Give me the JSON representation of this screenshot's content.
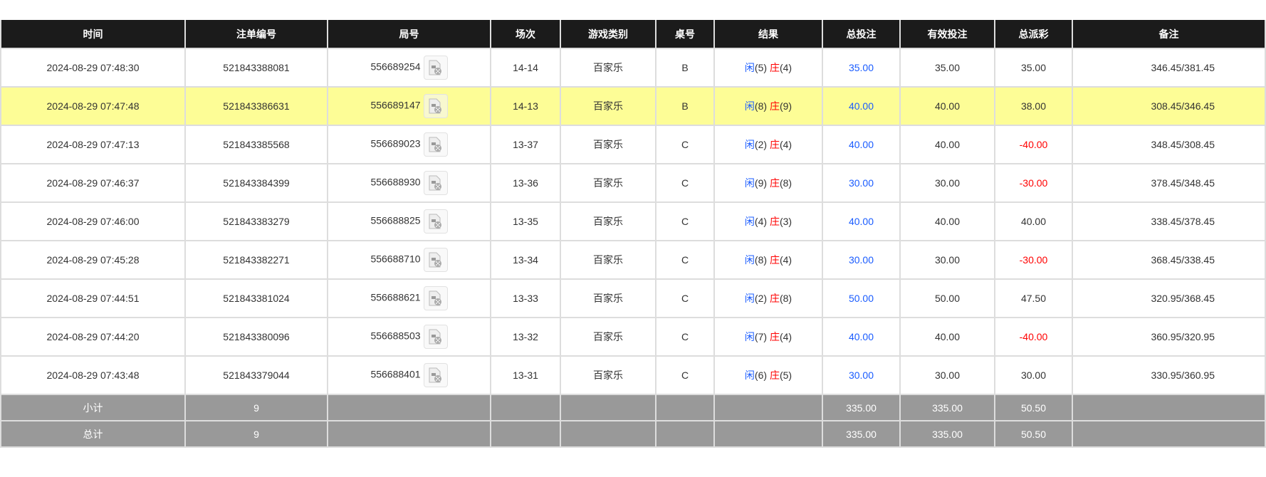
{
  "headers": [
    "时间",
    "注单编号",
    "局号",
    "场次",
    "游戏类别",
    "桌号",
    "结果",
    "总投注",
    "有效投注",
    "总派彩",
    "备注"
  ],
  "player_label": "闲",
  "banker_label": "庄",
  "colors": {
    "header_bg": "#1b1b1b",
    "highlight": "#fdfd96",
    "bet_blue": "#1a5cff",
    "negative_red": "#ff0000",
    "summary_bg": "#999999"
  },
  "rows": [
    {
      "time": "2024-08-29 07:48:30",
      "bet_id": "521843388081",
      "round": "556689254",
      "shoe": "14-14",
      "game": "百家乐",
      "table": "B",
      "player": "(5)",
      "banker": "(4)",
      "total_bet": "35.00",
      "valid_bet": "35.00",
      "payout": "35.00",
      "payout_negative": false,
      "remark": "346.45/381.45",
      "highlighted": false
    },
    {
      "time": "2024-08-29 07:47:48",
      "bet_id": "521843386631",
      "round": "556689147",
      "shoe": "14-13",
      "game": "百家乐",
      "table": "B",
      "player": "(8)",
      "banker": "(9)",
      "total_bet": "40.00",
      "valid_bet": "40.00",
      "payout": "38.00",
      "payout_negative": false,
      "remark": "308.45/346.45",
      "highlighted": true
    },
    {
      "time": "2024-08-29 07:47:13",
      "bet_id": "521843385568",
      "round": "556689023",
      "shoe": "13-37",
      "game": "百家乐",
      "table": "C",
      "player": "(2)",
      "banker": "(4)",
      "total_bet": "40.00",
      "valid_bet": "40.00",
      "payout": "-40.00",
      "payout_negative": true,
      "remark": "348.45/308.45",
      "highlighted": false
    },
    {
      "time": "2024-08-29 07:46:37",
      "bet_id": "521843384399",
      "round": "556688930",
      "shoe": "13-36",
      "game": "百家乐",
      "table": "C",
      "player": "(9)",
      "banker": "(8)",
      "total_bet": "30.00",
      "valid_bet": "30.00",
      "payout": "-30.00",
      "payout_negative": true,
      "remark": "378.45/348.45",
      "highlighted": false
    },
    {
      "time": "2024-08-29 07:46:00",
      "bet_id": "521843383279",
      "round": "556688825",
      "shoe": "13-35",
      "game": "百家乐",
      "table": "C",
      "player": "(4)",
      "banker": "(3)",
      "total_bet": "40.00",
      "valid_bet": "40.00",
      "payout": "40.00",
      "payout_negative": false,
      "remark": "338.45/378.45",
      "highlighted": false
    },
    {
      "time": "2024-08-29 07:45:28",
      "bet_id": "521843382271",
      "round": "556688710",
      "shoe": "13-34",
      "game": "百家乐",
      "table": "C",
      "player": "(8)",
      "banker": "(4)",
      "total_bet": "30.00",
      "valid_bet": "30.00",
      "payout": "-30.00",
      "payout_negative": true,
      "remark": "368.45/338.45",
      "highlighted": false
    },
    {
      "time": "2024-08-29 07:44:51",
      "bet_id": "521843381024",
      "round": "556688621",
      "shoe": "13-33",
      "game": "百家乐",
      "table": "C",
      "player": "(2)",
      "banker": "(8)",
      "total_bet": "50.00",
      "valid_bet": "50.00",
      "payout": "47.50",
      "payout_negative": false,
      "remark": "320.95/368.45",
      "highlighted": false
    },
    {
      "time": "2024-08-29 07:44:20",
      "bet_id": "521843380096",
      "round": "556688503",
      "shoe": "13-32",
      "game": "百家乐",
      "table": "C",
      "player": "(7)",
      "banker": "(4)",
      "total_bet": "40.00",
      "valid_bet": "40.00",
      "payout": "-40.00",
      "payout_negative": true,
      "remark": "360.95/320.95",
      "highlighted": false
    },
    {
      "time": "2024-08-29 07:43:48",
      "bet_id": "521843379044",
      "round": "556688401",
      "shoe": "13-31",
      "game": "百家乐",
      "table": "C",
      "player": "(6)",
      "banker": "(5)",
      "total_bet": "30.00",
      "valid_bet": "30.00",
      "payout": "30.00",
      "payout_negative": false,
      "remark": "330.95/360.95",
      "highlighted": false
    }
  ],
  "summary": [
    {
      "label": "小计",
      "count": "9",
      "total_bet": "335.00",
      "valid_bet": "335.00",
      "payout": "50.50"
    },
    {
      "label": "总计",
      "count": "9",
      "total_bet": "335.00",
      "valid_bet": "335.00",
      "payout": "50.50"
    }
  ]
}
